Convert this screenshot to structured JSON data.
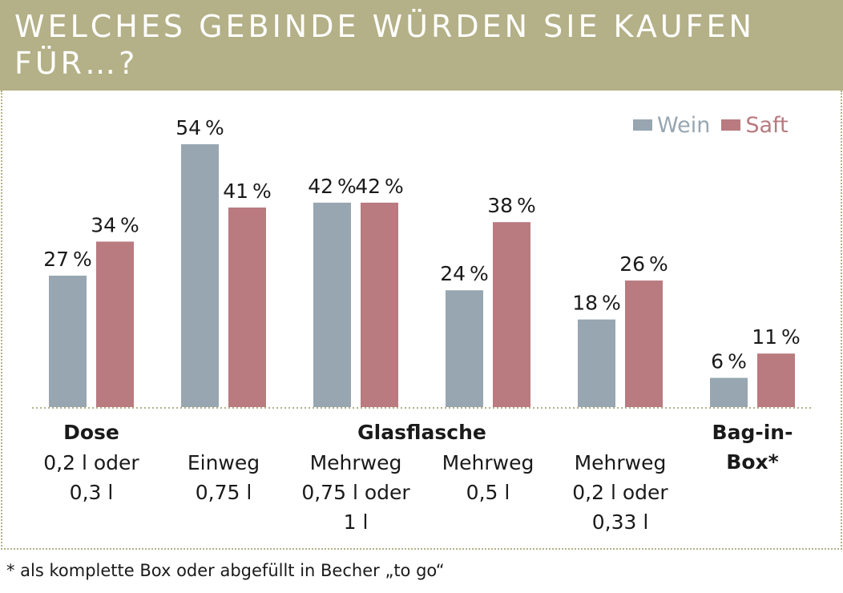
{
  "header": {
    "title": "WELCHES GEBINDE WÜRDEN SIE KAUFEN FÜR…?"
  },
  "footnote": "* als komplette Box oder abgefüllt in Becher „to go“",
  "colors": {
    "header_bg": "#b4b087",
    "wein": "#97a6b1",
    "saft": "#b97a80",
    "text": "#1a1a1a"
  },
  "chart_data": {
    "type": "bar",
    "title": "WELCHES GEBINDE WÜRDEN SIE KAUFEN FÜR…?",
    "categories": [
      [
        "0,2 l oder",
        "0,3 l"
      ],
      [
        "Einweg",
        "0,75 l"
      ],
      [
        "Mehrweg",
        "0,75 l oder",
        "1 l"
      ],
      [
        "Mehrweg",
        "0,5 l"
      ],
      [
        "Mehrweg",
        "0,2 l oder",
        "0,33 l"
      ],
      []
    ],
    "groups": [
      {
        "label": "Dose",
        "categories": [
          0
        ]
      },
      {
        "label": "Glasflasche",
        "categories": [
          1,
          2,
          3,
          4
        ]
      },
      {
        "label": "Bag-in-Box*",
        "categories": [
          5
        ]
      }
    ],
    "series": [
      {
        "name": "Wein",
        "color": "#97a6b1",
        "values": [
          27,
          54,
          42,
          24,
          18,
          6
        ]
      },
      {
        "name": "Saft",
        "color": "#b97a80",
        "values": [
          34,
          41,
          42,
          38,
          26,
          11
        ]
      }
    ],
    "value_suffix": "%",
    "ylim": [
      0,
      54
    ],
    "legend": "top-right",
    "grid": false,
    "xlabel": "",
    "ylabel": ""
  }
}
